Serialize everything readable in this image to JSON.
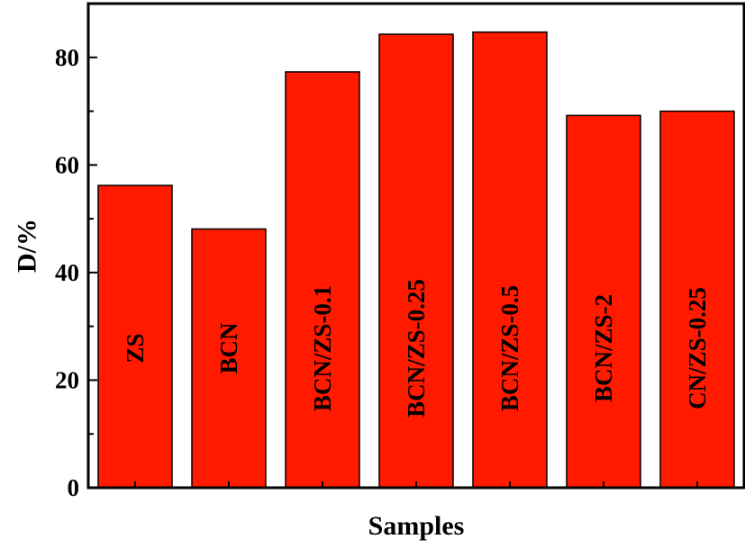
{
  "chart_data": {
    "type": "bar",
    "categories": [
      "ZS",
      "BCN",
      "BCN/ZS-0.1",
      "BCN/ZS-0.25",
      "BCN/ZS-0.5",
      "BCN/ZS-2",
      "CN/ZS-0.25"
    ],
    "values": [
      56.2,
      48.1,
      77.3,
      84.3,
      84.7,
      69.2,
      70.0
    ],
    "xlabel": "Samples",
    "ylabel": "D/%",
    "ylim": [
      0,
      90
    ],
    "yticks": [
      0,
      20,
      40,
      60,
      80
    ],
    "grid": false,
    "bar_color": "#ff1a00",
    "bar_labels_inside": true
  }
}
